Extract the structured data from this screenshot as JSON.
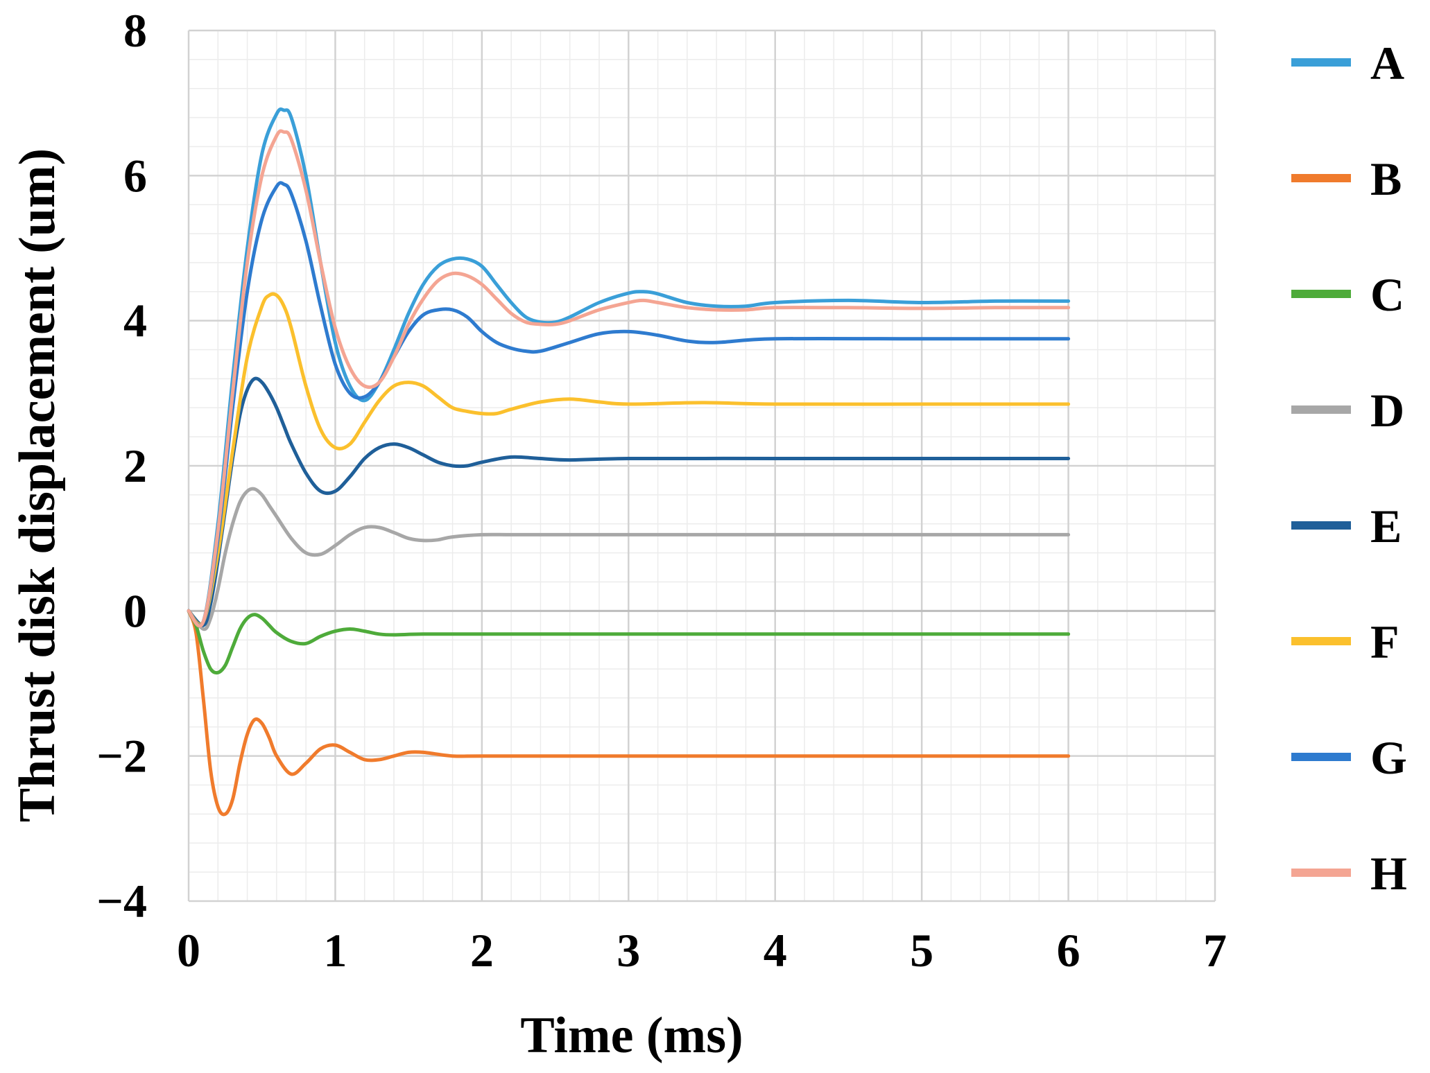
{
  "chart_data": {
    "type": "line",
    "title": "",
    "xlabel": "Time  (ms)",
    "ylabel": "Thrust disk displacement  (um)",
    "xlim": [
      0,
      7
    ],
    "ylim": [
      -4,
      8
    ],
    "x_ticks": [
      0,
      1,
      2,
      3,
      4,
      5,
      6,
      7
    ],
    "y_ticks": [
      -4,
      -2,
      0,
      2,
      4,
      6,
      8
    ],
    "x_tick_labels": [
      "0",
      "1",
      "2",
      "3",
      "4",
      "5",
      "6",
      "7"
    ],
    "y_tick_labels": [
      "−4",
      "−2",
      "0",
      "2",
      "4",
      "6",
      "8"
    ],
    "x_minor_step": 0.2,
    "y_minor_step": 0.4,
    "grid": true,
    "legend_position": "right",
    "series": [
      {
        "name": "A",
        "color": "#3a9fd8",
        "x": [
          0,
          0.1,
          0.2,
          0.3,
          0.4,
          0.5,
          0.6,
          0.65,
          0.7,
          0.8,
          0.9,
          1.0,
          1.1,
          1.2,
          1.3,
          1.4,
          1.5,
          1.6,
          1.7,
          1.8,
          1.9,
          2.0,
          2.1,
          2.2,
          2.3,
          2.4,
          2.5,
          2.6,
          2.8,
          3.0,
          3.1,
          3.2,
          3.4,
          3.6,
          3.8,
          4.0,
          4.5,
          5.0,
          5.5,
          6.0
        ],
        "values": [
          0,
          -0.15,
          1.2,
          3.2,
          5.0,
          6.3,
          6.85,
          6.9,
          6.8,
          6.0,
          4.8,
          3.7,
          3.1,
          2.9,
          3.15,
          3.6,
          4.1,
          4.5,
          4.75,
          4.85,
          4.85,
          4.75,
          4.5,
          4.25,
          4.05,
          3.98,
          3.98,
          4.05,
          4.25,
          4.38,
          4.4,
          4.37,
          4.25,
          4.2,
          4.2,
          4.25,
          4.28,
          4.25,
          4.27,
          4.27
        ]
      },
      {
        "name": "B",
        "color": "#f07b2c",
        "x": [
          0,
          0.05,
          0.1,
          0.15,
          0.2,
          0.25,
          0.3,
          0.35,
          0.4,
          0.45,
          0.5,
          0.55,
          0.6,
          0.7,
          0.8,
          0.9,
          1.0,
          1.1,
          1.2,
          1.3,
          1.4,
          1.5,
          1.6,
          1.8,
          2.0,
          2.5,
          3.0,
          4.0,
          5.0,
          6.0
        ],
        "values": [
          0,
          -0.3,
          -1.2,
          -2.2,
          -2.7,
          -2.8,
          -2.6,
          -2.1,
          -1.7,
          -1.5,
          -1.55,
          -1.75,
          -2.0,
          -2.25,
          -2.1,
          -1.9,
          -1.85,
          -1.95,
          -2.05,
          -2.05,
          -2.0,
          -1.95,
          -1.95,
          -2.0,
          -2.0,
          -2.0,
          -2.0,
          -2.0,
          -2.0,
          -2.0
        ]
      },
      {
        "name": "C",
        "color": "#4eab3a",
        "x": [
          0,
          0.05,
          0.1,
          0.15,
          0.2,
          0.25,
          0.3,
          0.35,
          0.4,
          0.45,
          0.5,
          0.55,
          0.6,
          0.7,
          0.8,
          0.9,
          1.0,
          1.1,
          1.2,
          1.3,
          1.4,
          1.6,
          2.0,
          2.5,
          3.0,
          4.0,
          5.0,
          6.0
        ],
        "values": [
          0,
          -0.2,
          -0.55,
          -0.8,
          -0.85,
          -0.75,
          -0.5,
          -0.25,
          -0.1,
          -0.05,
          -0.1,
          -0.2,
          -0.3,
          -0.42,
          -0.45,
          -0.35,
          -0.28,
          -0.25,
          -0.28,
          -0.32,
          -0.33,
          -0.32,
          -0.32,
          -0.32,
          -0.32,
          -0.32,
          -0.32,
          -0.32
        ]
      },
      {
        "name": "D",
        "color": "#a7a7a7",
        "x": [
          0,
          0.1,
          0.15,
          0.2,
          0.25,
          0.3,
          0.35,
          0.4,
          0.45,
          0.5,
          0.55,
          0.6,
          0.7,
          0.8,
          0.9,
          1.0,
          1.1,
          1.2,
          1.3,
          1.4,
          1.5,
          1.6,
          1.7,
          1.8,
          2.0,
          2.2,
          2.5,
          3.0,
          4.0,
          5.0,
          6.0
        ],
        "values": [
          0,
          -0.25,
          -0.1,
          0.3,
          0.8,
          1.2,
          1.5,
          1.65,
          1.68,
          1.6,
          1.45,
          1.3,
          1.0,
          0.8,
          0.78,
          0.9,
          1.05,
          1.15,
          1.15,
          1.08,
          1.0,
          0.97,
          0.98,
          1.02,
          1.05,
          1.05,
          1.05,
          1.05,
          1.05,
          1.05,
          1.05
        ]
      },
      {
        "name": "E",
        "color": "#1f5f99",
        "x": [
          0,
          0.1,
          0.15,
          0.2,
          0.25,
          0.3,
          0.35,
          0.4,
          0.45,
          0.5,
          0.55,
          0.6,
          0.65,
          0.7,
          0.8,
          0.9,
          1.0,
          1.1,
          1.2,
          1.3,
          1.4,
          1.5,
          1.6,
          1.7,
          1.8,
          1.9,
          2.0,
          2.2,
          2.4,
          2.6,
          3.0,
          4.0,
          5.0,
          6.0
        ],
        "values": [
          0,
          -0.2,
          0.1,
          0.7,
          1.4,
          2.1,
          2.7,
          3.05,
          3.2,
          3.15,
          3.0,
          2.8,
          2.55,
          2.3,
          1.9,
          1.65,
          1.65,
          1.85,
          2.1,
          2.25,
          2.3,
          2.25,
          2.15,
          2.05,
          2.0,
          2.0,
          2.05,
          2.12,
          2.1,
          2.08,
          2.1,
          2.1,
          2.1,
          2.1
        ]
      },
      {
        "name": "F",
        "color": "#fbc02d",
        "x": [
          0,
          0.1,
          0.2,
          0.3,
          0.4,
          0.5,
          0.55,
          0.6,
          0.65,
          0.7,
          0.8,
          0.9,
          1.0,
          1.1,
          1.2,
          1.3,
          1.4,
          1.5,
          1.6,
          1.7,
          1.8,
          1.9,
          2.0,
          2.1,
          2.2,
          2.4,
          2.6,
          2.8,
          3.0,
          3.5,
          4.0,
          5.0,
          6.0
        ],
        "values": [
          0,
          -0.15,
          0.8,
          2.2,
          3.5,
          4.2,
          4.35,
          4.35,
          4.2,
          3.9,
          3.1,
          2.5,
          2.25,
          2.3,
          2.6,
          2.9,
          3.1,
          3.15,
          3.1,
          2.95,
          2.8,
          2.75,
          2.72,
          2.72,
          2.78,
          2.88,
          2.92,
          2.88,
          2.85,
          2.87,
          2.85,
          2.85,
          2.85
        ]
      },
      {
        "name": "G",
        "color": "#2e7bcf",
        "x": [
          0,
          0.1,
          0.2,
          0.3,
          0.4,
          0.5,
          0.6,
          0.65,
          0.7,
          0.8,
          0.9,
          1.0,
          1.1,
          1.2,
          1.3,
          1.4,
          1.5,
          1.6,
          1.7,
          1.8,
          1.9,
          2.0,
          2.1,
          2.2,
          2.3,
          2.4,
          2.6,
          2.8,
          3.0,
          3.2,
          3.4,
          3.6,
          4.0,
          5.0,
          6.0
        ],
        "values": [
          0,
          -0.15,
          1.0,
          2.8,
          4.4,
          5.4,
          5.85,
          5.88,
          5.75,
          5.1,
          4.2,
          3.4,
          3.0,
          2.95,
          3.15,
          3.5,
          3.85,
          4.08,
          4.15,
          4.15,
          4.05,
          3.85,
          3.7,
          3.62,
          3.58,
          3.58,
          3.7,
          3.82,
          3.85,
          3.8,
          3.72,
          3.7,
          3.75,
          3.75,
          3.75
        ]
      },
      {
        "name": "H",
        "color": "#f4a593",
        "x": [
          0,
          0.1,
          0.2,
          0.3,
          0.4,
          0.5,
          0.6,
          0.65,
          0.7,
          0.8,
          0.9,
          1.0,
          1.1,
          1.2,
          1.3,
          1.4,
          1.5,
          1.6,
          1.7,
          1.8,
          1.9,
          2.0,
          2.1,
          2.2,
          2.3,
          2.4,
          2.5,
          2.6,
          2.8,
          3.0,
          3.1,
          3.2,
          3.4,
          3.6,
          3.8,
          4.0,
          4.5,
          5.0,
          5.5,
          6.0
        ],
        "values": [
          0,
          -0.15,
          1.1,
          3.0,
          4.8,
          6.0,
          6.55,
          6.6,
          6.5,
          5.8,
          4.8,
          3.9,
          3.35,
          3.1,
          3.15,
          3.5,
          3.95,
          4.3,
          4.55,
          4.65,
          4.62,
          4.5,
          4.3,
          4.1,
          3.98,
          3.95,
          3.95,
          4.0,
          4.15,
          4.25,
          4.28,
          4.25,
          4.18,
          4.15,
          4.15,
          4.18,
          4.18,
          4.17,
          4.18,
          4.18
        ]
      }
    ]
  }
}
